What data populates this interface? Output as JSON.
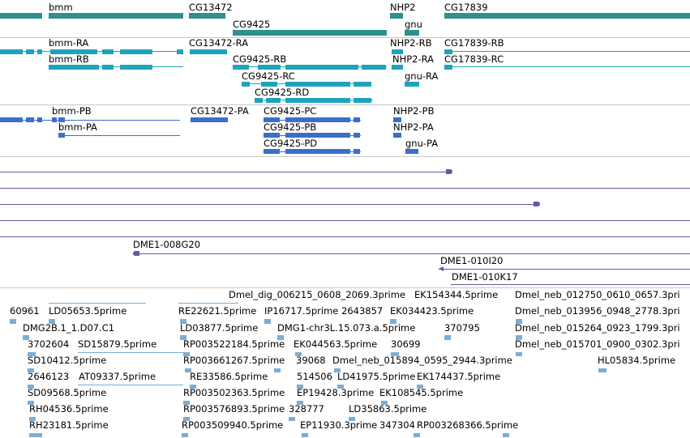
{
  "colors": {
    "gene": "#2f8f8f",
    "transcript": "#1fa3bd",
    "protein": "#3a6fc9",
    "clone": "#6a54a8",
    "est": "#79aed6",
    "separator": "#c8c8c8"
  },
  "tracks": {
    "genes": [
      {
        "label": "bmm"
      },
      {
        "label": "CG13472"
      },
      {
        "label": "CG9425"
      },
      {
        "label": "NHP2"
      },
      {
        "label": "gnu"
      },
      {
        "label": "CG17839"
      }
    ],
    "transcripts": [
      {
        "label": "bmm-RA"
      },
      {
        "label": "bmm-RB"
      },
      {
        "label": "CG13472-RA"
      },
      {
        "label": "CG9425-RB"
      },
      {
        "label": "CG9425-RC"
      },
      {
        "label": "CG9425-RD"
      },
      {
        "label": "NHP2-RB"
      },
      {
        "label": "NHP2-RA"
      },
      {
        "label": "gnu-RA"
      },
      {
        "label": "CG17839-RB"
      },
      {
        "label": "CG17839-RC"
      }
    ],
    "proteins": [
      {
        "label": "bmm-PB"
      },
      {
        "label": "bmm-PA"
      },
      {
        "label": "CG13472-PA"
      },
      {
        "label": "CG9425-PC"
      },
      {
        "label": "CG9425-PB"
      },
      {
        "label": "CG9425-PD"
      },
      {
        "label": "NHP2-PB"
      },
      {
        "label": "NHP2-PA"
      },
      {
        "label": "gnu-PA"
      }
    ],
    "clones": [
      {
        "label": "DME1-008G20"
      },
      {
        "label": "DME1-010I20"
      },
      {
        "label": "DME1-010K17"
      }
    ],
    "ests": [
      {
        "label": "Dmel_dig_006215_0608_2069.3prime"
      },
      {
        "label": "EK154344.5prime"
      },
      {
        "label": "Dmel_neb_012750_0610_0657.3pri"
      },
      {
        "label": "60961"
      },
      {
        "label": "LD05653.5prime"
      },
      {
        "label": "RE22621.5prime"
      },
      {
        "label": "IP16717.5prime"
      },
      {
        "label": "2643857"
      },
      {
        "label": "EK034423.5prime"
      },
      {
        "label": "Dmel_neb_013956_0948_2778.3pri"
      },
      {
        "label": "DMG2B.1_1.D07.C1"
      },
      {
        "label": "LD03877.5prime"
      },
      {
        "label": "DMG1-chr3L.15.073.a.5prime"
      },
      {
        "label": "370795"
      },
      {
        "label": "Dmel_neb_015264_0923_1799.3pri"
      },
      {
        "label": "3702604"
      },
      {
        "label": "SD15879.5prime"
      },
      {
        "label": "RP003522184.5prime"
      },
      {
        "label": "EK044563.5prime"
      },
      {
        "label": "30699"
      },
      {
        "label": "Dmel_neb_015701_0900_0302.3pri"
      },
      {
        "label": "SD10412.5prime"
      },
      {
        "label": "RP003661267.5prime"
      },
      {
        "label": "39068"
      },
      {
        "label": "Dmel_neb_015894_0595_2944.3prime"
      },
      {
        "label": "HL05834.5prime"
      },
      {
        "label": "2646123"
      },
      {
        "label": "AT09337.5prime"
      },
      {
        "label": "RE33586.5prime"
      },
      {
        "label": "514506"
      },
      {
        "label": "LD41975.5prime"
      },
      {
        "label": "EK174437.5prime"
      },
      {
        "label": "SD09568.5prime"
      },
      {
        "label": "RP003502363.5prime"
      },
      {
        "label": "EP19428.3prime"
      },
      {
        "label": "EK108545.5prime"
      },
      {
        "label": "RH04536.5prime"
      },
      {
        "label": "RP003576893.5prime"
      },
      {
        "label": "328777"
      },
      {
        "label": "LD35863.5prime"
      },
      {
        "label": "RH23181.5prime"
      },
      {
        "label": "RP003509940.5prime"
      },
      {
        "label": "EP11930.3prime"
      },
      {
        "label": "347304"
      },
      {
        "label": "RP003268366.5prime"
      }
    ]
  }
}
